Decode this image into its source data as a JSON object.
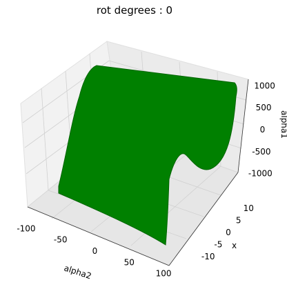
{
  "chart_data": {
    "type": "scatter",
    "projection": "3d",
    "title": "rot degrees : 0",
    "xlabel": "alpha2",
    "ylabel": "x",
    "zlabel": "alpha1",
    "x_ticks": [
      -100,
      -50,
      0,
      50,
      100
    ],
    "y_ticks": [
      -10,
      -5,
      0,
      5,
      10
    ],
    "z_ticks": [
      -1000,
      -500,
      0,
      500,
      1000
    ],
    "xlim": [
      -110,
      110
    ],
    "ylim": [
      -14,
      14
    ],
    "zlim": [
      -1100,
      1100
    ],
    "grid": true,
    "series": [
      {
        "color": "#008000",
        "marker": "o",
        "description_points": [
          {
            "alpha2": -100,
            "x": -12,
            "alpha1": -1000
          },
          {
            "alpha2": 100,
            "x": -12,
            "alpha1": -1000
          },
          {
            "alpha2": 100,
            "x": 12,
            "alpha1": 1000
          },
          {
            "alpha2": -100,
            "x": 12,
            "alpha1": 1000
          }
        ]
      }
    ]
  }
}
